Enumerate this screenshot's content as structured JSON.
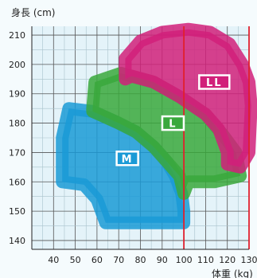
{
  "chart_data": {
    "type": "area",
    "xlabel": "体重 (kg)",
    "ylabel": "身長 (cm)",
    "xlim": [
      30,
      130
    ],
    "ylim": [
      137,
      213
    ],
    "xticks": [
      40,
      50,
      60,
      70,
      80,
      90,
      100,
      110,
      120,
      130
    ],
    "yticks": [
      140,
      150,
      160,
      170,
      180,
      190,
      200,
      210
    ],
    "grid": true,
    "reference_lines_x": [
      100,
      130
    ],
    "zones": [
      {
        "name": "M",
        "color": "#1a9ad6",
        "polygon": [
          [
            44,
            175
          ],
          [
            47,
            185
          ],
          [
            58,
            184
          ],
          [
            70,
            180
          ],
          [
            78,
            177
          ],
          [
            86,
            172
          ],
          [
            92,
            167
          ],
          [
            96,
            162
          ],
          [
            99,
            156
          ],
          [
            100,
            150
          ],
          [
            100,
            146
          ],
          [
            64,
            146
          ],
          [
            60,
            154
          ],
          [
            54,
            159
          ],
          [
            44,
            160
          ]
        ],
        "label_pos": [
          74,
          168
        ]
      },
      {
        "name": "L",
        "color": "#3aa83c",
        "polygon": [
          [
            58,
            185
          ],
          [
            59,
            194
          ],
          [
            71,
            197
          ],
          [
            86,
            194
          ],
          [
            98,
            189
          ],
          [
            110,
            183
          ],
          [
            118,
            176
          ],
          [
            124,
            170
          ],
          [
            126,
            162
          ],
          [
            114,
            160
          ],
          [
            102,
            160
          ],
          [
            100,
            156
          ],
          [
            98,
            162
          ],
          [
            92,
            167
          ],
          [
            86,
            172
          ],
          [
            78,
            177
          ],
          [
            70,
            180
          ],
          [
            58,
            184
          ]
        ],
        "label_pos": [
          95,
          180
        ]
      },
      {
        "name": "LL",
        "color": "#d1207a",
        "polygon": [
          [
            73,
            195
          ],
          [
            73,
            202
          ],
          [
            80,
            208
          ],
          [
            90,
            211
          ],
          [
            102,
            212
          ],
          [
            112,
            211
          ],
          [
            121,
            207
          ],
          [
            127,
            200
          ],
          [
            130,
            194
          ],
          [
            131,
            186
          ],
          [
            130,
            170
          ],
          [
            126,
            165
          ],
          [
            120,
            166
          ],
          [
            120,
            170
          ],
          [
            116,
            178
          ],
          [
            110,
            183
          ],
          [
            98,
            189
          ],
          [
            86,
            194
          ],
          [
            76,
            196
          ]
        ],
        "label_pos": [
          114,
          194
        ]
      }
    ]
  }
}
